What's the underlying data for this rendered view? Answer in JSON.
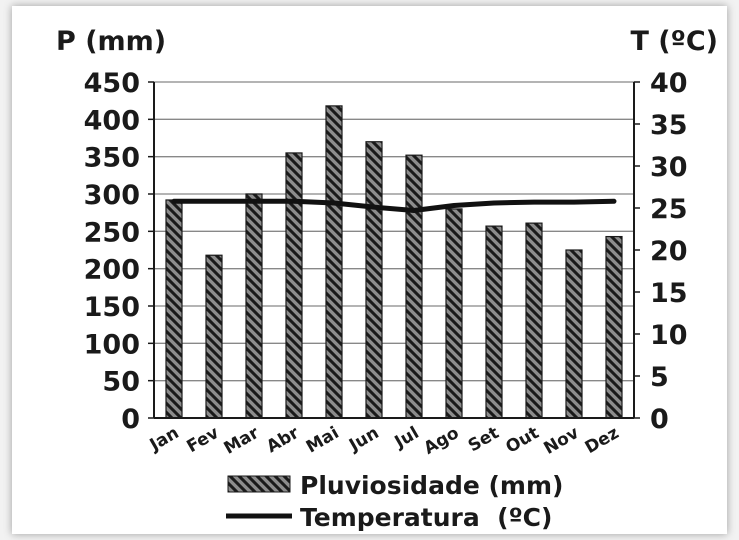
{
  "chart_data": {
    "type": "bar+line",
    "categories": [
      "Jan",
      "Fev",
      "Mar",
      "Abr",
      "Mai",
      "Jun",
      "Jul",
      "Ago",
      "Set",
      "Out",
      "Nov",
      "Dez"
    ],
    "series": [
      {
        "name": "Pluviosidade (mm)",
        "type": "bar",
        "axis": "left",
        "values": [
          292,
          218,
          300,
          355,
          418,
          370,
          352,
          280,
          257,
          261,
          225,
          243
        ]
      },
      {
        "name": "Temperatura  (ºC)",
        "type": "line",
        "axis": "right",
        "values": [
          25.8,
          25.8,
          25.8,
          25.8,
          25.6,
          25.1,
          24.7,
          25.3,
          25.6,
          25.7,
          25.7,
          25.8
        ]
      }
    ],
    "ylabel_left": "P (mm)",
    "ylabel_right": "T (ºC)",
    "ylim_left": [
      0,
      450
    ],
    "ylim_right": [
      0,
      40
    ],
    "yticks_left": [
      "0",
      "50",
      "100",
      "150",
      "200",
      "250",
      "300",
      "350",
      "400",
      "450"
    ],
    "yticks_right": [
      "0",
      "5",
      "10",
      "15",
      "20",
      "25",
      "30",
      "35",
      "40"
    ],
    "grid": true,
    "legend_position": "bottom",
    "colors": {
      "bar_fill": "#8c8c8c",
      "bar_hatch": "#1a1a1a",
      "line": "#111111",
      "grid": "#888888"
    }
  }
}
